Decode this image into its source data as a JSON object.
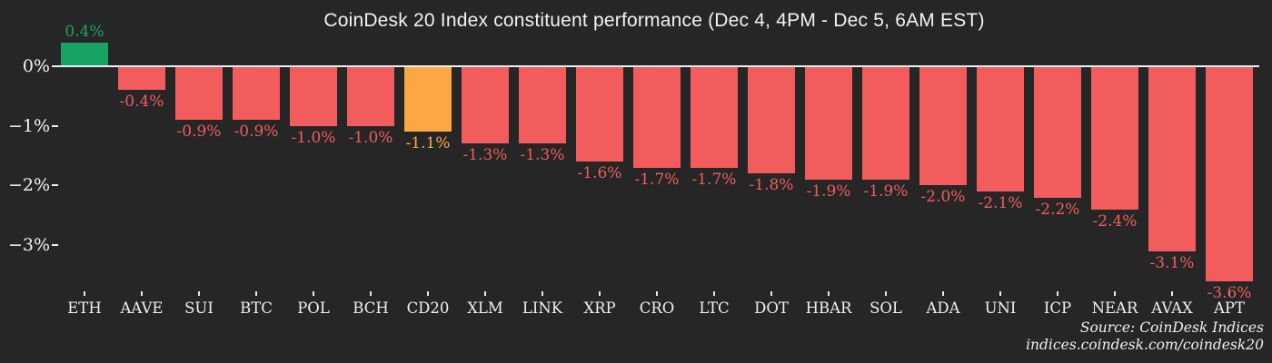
{
  "title": "CoinDesk 20 Index constituent performance (Dec 4, 4PM - Dec 5, 6AM EST)",
  "source": {
    "line1": "Source: CoinDesk Indices",
    "line2": "indices.coindesk.com/coindesk20"
  },
  "colors": {
    "background": "#262626",
    "positive": "#18a564",
    "negative": "#f25c5c",
    "highlight": "#fba844",
    "axis": "#efefef",
    "text": "#f0f0f0"
  },
  "chart_data": {
    "type": "bar",
    "title": "CoinDesk 20 Index constituent performance (Dec 4, 4PM - Dec 5, 6AM EST)",
    "categories": [
      "ETH",
      "AAVE",
      "SUI",
      "BTC",
      "POL",
      "BCH",
      "CD20",
      "XLM",
      "LINK",
      "XRP",
      "CRO",
      "LTC",
      "DOT",
      "HBAR",
      "SOL",
      "ADA",
      "UNI",
      "ICP",
      "NEAR",
      "AVAX",
      "APT"
    ],
    "values": [
      0.4,
      -0.4,
      -0.9,
      -0.9,
      -1.0,
      -1.0,
      -1.1,
      -1.3,
      -1.3,
      -1.6,
      -1.7,
      -1.7,
      -1.8,
      -1.9,
      -1.9,
      -2.0,
      -2.1,
      -2.2,
      -2.4,
      -3.1,
      -3.6
    ],
    "bar_labels": [
      "0.4%",
      "-0.4%",
      "-0.9%",
      "-0.9%",
      "-1.0%",
      "-1.0%",
      "-1.1%",
      "-1.3%",
      "-1.3%",
      "-1.6%",
      "-1.7%",
      "-1.7%",
      "-1.8%",
      "-1.9%",
      "-1.9%",
      "-2.0%",
      "-2.1%",
      "-2.2%",
      "-2.4%",
      "-3.1%",
      "-3.6%"
    ],
    "bar_roles": [
      "positive",
      "negative",
      "negative",
      "negative",
      "negative",
      "negative",
      "highlight",
      "negative",
      "negative",
      "negative",
      "negative",
      "negative",
      "negative",
      "negative",
      "negative",
      "negative",
      "negative",
      "negative",
      "negative",
      "negative",
      "negative"
    ],
    "yticks": {
      "labels": [
        "0%",
        "−1%",
        "−2%",
        "−3%"
      ],
      "values": [
        0,
        -1,
        -2,
        -3
      ]
    },
    "xlabel": "",
    "ylabel": "",
    "ylim": [
      -3.9,
      0.8
    ],
    "grid": false,
    "legend": null
  }
}
